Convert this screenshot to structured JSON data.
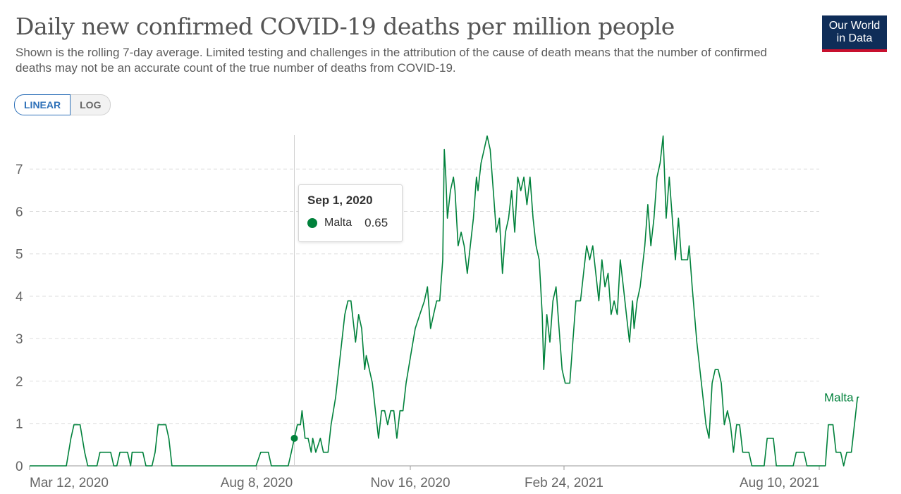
{
  "header": {
    "title": "Daily new confirmed COVID-19 deaths per million people",
    "subtitle": "Shown is the rolling 7-day average. Limited testing and challenges in the attribution of the cause of death means that the number of confirmed deaths may not be an accurate count of the true number of deaths from COVID-19.",
    "logo_line1": "Our World",
    "logo_line2": "in Data"
  },
  "controls": {
    "linear_label": "LINEAR",
    "log_label": "LOG",
    "active": "linear"
  },
  "tooltip": {
    "date": "Sep 1, 2020",
    "series": "Malta",
    "value": "0.65"
  },
  "colors": {
    "series": "#00813b",
    "grid": "#dddddd",
    "axis_text": "#666666",
    "accent": "#2d70b8",
    "logo_bg": "#0f2d58",
    "logo_bar": "#c8102e"
  },
  "chart_data": {
    "type": "line",
    "title": "Daily new confirmed COVID-19 deaths per million people",
    "ylim": [
      0,
      7.8
    ],
    "y_ticks": [
      0,
      1,
      2,
      3,
      4,
      5,
      6,
      7
    ],
    "x_tick_labels": [
      "Mar 12, 2020",
      "Aug 8, 2020",
      "Nov 16, 2020",
      "Feb 24, 2021",
      "Aug 10, 2021"
    ],
    "x_range": [
      "2020-03-12",
      "2021-08-10"
    ],
    "grid": true,
    "highlight": {
      "x": "2020-09-01",
      "y": 0.65
    },
    "series": [
      {
        "name": "Malta",
        "end_label": "Malta",
        "points": [
          [
            "2020-03-12",
            0
          ],
          [
            "2020-04-05",
            0
          ],
          [
            "2020-04-08",
            0.65
          ],
          [
            "2020-04-10",
            0.97
          ],
          [
            "2020-04-14",
            0.97
          ],
          [
            "2020-04-17",
            0.32
          ],
          [
            "2020-04-19",
            0
          ],
          [
            "2020-04-25",
            0
          ],
          [
            "2020-04-27",
            0.32
          ],
          [
            "2020-05-04",
            0.32
          ],
          [
            "2020-05-06",
            0
          ],
          [
            "2020-05-08",
            0
          ],
          [
            "2020-05-10",
            0.32
          ],
          [
            "2020-05-15",
            0.32
          ],
          [
            "2020-05-17",
            0
          ],
          [
            "2020-05-18",
            0.32
          ],
          [
            "2020-05-25",
            0.32
          ],
          [
            "2020-05-27",
            0
          ],
          [
            "2020-05-31",
            0
          ],
          [
            "2020-06-02",
            0.32
          ],
          [
            "2020-06-04",
            0.97
          ],
          [
            "2020-06-09",
            0.97
          ],
          [
            "2020-06-11",
            0.65
          ],
          [
            "2020-06-13",
            0
          ],
          [
            "2020-08-07",
            0
          ],
          [
            "2020-08-10",
            0.32
          ],
          [
            "2020-08-15",
            0.32
          ],
          [
            "2020-08-17",
            0
          ],
          [
            "2020-08-28",
            0
          ],
          [
            "2020-08-30",
            0.32
          ],
          [
            "2020-09-01",
            0.65
          ],
          [
            "2020-09-03",
            0.97
          ],
          [
            "2020-09-05",
            0.97
          ],
          [
            "2020-09-06",
            1.3
          ],
          [
            "2020-09-08",
            0.65
          ],
          [
            "2020-09-10",
            0.65
          ],
          [
            "2020-09-12",
            0.32
          ],
          [
            "2020-09-13",
            0.65
          ],
          [
            "2020-09-15",
            0.32
          ],
          [
            "2020-09-18",
            0.65
          ],
          [
            "2020-09-20",
            0.32
          ],
          [
            "2020-09-23",
            0.32
          ],
          [
            "2020-09-25",
            0.97
          ],
          [
            "2020-09-28",
            1.62
          ],
          [
            "2020-10-01",
            2.6
          ],
          [
            "2020-10-04",
            3.57
          ],
          [
            "2020-10-06",
            3.89
          ],
          [
            "2020-10-08",
            3.89
          ],
          [
            "2020-10-10",
            3.24
          ],
          [
            "2020-10-11",
            2.92
          ],
          [
            "2020-10-13",
            3.57
          ],
          [
            "2020-10-15",
            3.24
          ],
          [
            "2020-10-17",
            2.27
          ],
          [
            "2020-10-18",
            2.6
          ],
          [
            "2020-10-20",
            2.27
          ],
          [
            "2020-10-22",
            1.95
          ],
          [
            "2020-10-24",
            1.3
          ],
          [
            "2020-10-26",
            0.65
          ],
          [
            "2020-10-28",
            1.3
          ],
          [
            "2020-10-30",
            1.3
          ],
          [
            "2020-11-01",
            0.97
          ],
          [
            "2020-11-03",
            1.3
          ],
          [
            "2020-11-05",
            1.3
          ],
          [
            "2020-11-07",
            0.65
          ],
          [
            "2020-11-09",
            1.3
          ],
          [
            "2020-11-11",
            1.3
          ],
          [
            "2020-11-13",
            1.95
          ],
          [
            "2020-11-16",
            2.6
          ],
          [
            "2020-11-19",
            3.24
          ],
          [
            "2020-11-22",
            3.57
          ],
          [
            "2020-11-25",
            3.89
          ],
          [
            "2020-11-27",
            4.22
          ],
          [
            "2020-11-29",
            3.24
          ],
          [
            "2020-12-01",
            3.57
          ],
          [
            "2020-12-03",
            3.89
          ],
          [
            "2020-12-05",
            3.89
          ],
          [
            "2020-12-07",
            4.86
          ],
          [
            "2020-12-08",
            7.46
          ],
          [
            "2020-12-09",
            6.81
          ],
          [
            "2020-12-10",
            5.84
          ],
          [
            "2020-12-12",
            6.49
          ],
          [
            "2020-12-14",
            6.81
          ],
          [
            "2020-12-15",
            6.49
          ],
          [
            "2020-12-17",
            5.19
          ],
          [
            "2020-12-19",
            5.51
          ],
          [
            "2020-12-21",
            5.19
          ],
          [
            "2020-12-23",
            4.54
          ],
          [
            "2020-12-25",
            5.19
          ],
          [
            "2020-12-27",
            5.84
          ],
          [
            "2020-12-29",
            6.81
          ],
          [
            "2020-12-30",
            6.49
          ],
          [
            "2021-01-01",
            7.14
          ],
          [
            "2021-01-03",
            7.46
          ],
          [
            "2021-01-05",
            7.78
          ],
          [
            "2021-01-07",
            7.46
          ],
          [
            "2021-01-09",
            6.49
          ],
          [
            "2021-01-11",
            5.51
          ],
          [
            "2021-01-13",
            5.84
          ],
          [
            "2021-01-15",
            4.54
          ],
          [
            "2021-01-17",
            5.51
          ],
          [
            "2021-01-19",
            5.84
          ],
          [
            "2021-01-21",
            6.49
          ],
          [
            "2021-01-23",
            5.51
          ],
          [
            "2021-01-25",
            6.81
          ],
          [
            "2021-01-27",
            6.49
          ],
          [
            "2021-01-29",
            6.81
          ],
          [
            "2021-01-31",
            6.16
          ],
          [
            "2021-02-02",
            6.81
          ],
          [
            "2021-02-04",
            5.84
          ],
          [
            "2021-02-06",
            5.19
          ],
          [
            "2021-02-08",
            4.86
          ],
          [
            "2021-02-10",
            3.57
          ],
          [
            "2021-02-11",
            2.27
          ],
          [
            "2021-02-13",
            3.57
          ],
          [
            "2021-02-15",
            2.92
          ],
          [
            "2021-02-17",
            3.89
          ],
          [
            "2021-02-19",
            4.22
          ],
          [
            "2021-02-21",
            3.24
          ],
          [
            "2021-02-23",
            2.27
          ],
          [
            "2021-02-25",
            1.95
          ],
          [
            "2021-02-28",
            1.95
          ],
          [
            "2021-03-02",
            2.92
          ],
          [
            "2021-03-04",
            3.89
          ],
          [
            "2021-03-07",
            3.89
          ],
          [
            "2021-03-09",
            4.54
          ],
          [
            "2021-03-11",
            5.19
          ],
          [
            "2021-03-13",
            4.86
          ],
          [
            "2021-03-15",
            5.19
          ],
          [
            "2021-03-17",
            4.54
          ],
          [
            "2021-03-19",
            3.89
          ],
          [
            "2021-03-21",
            4.86
          ],
          [
            "2021-03-23",
            4.22
          ],
          [
            "2021-03-25",
            4.54
          ],
          [
            "2021-03-27",
            3.57
          ],
          [
            "2021-03-29",
            3.89
          ],
          [
            "2021-03-31",
            3.57
          ],
          [
            "2021-04-02",
            4.86
          ],
          [
            "2021-04-04",
            4.22
          ],
          [
            "2021-04-06",
            3.57
          ],
          [
            "2021-04-08",
            2.92
          ],
          [
            "2021-04-10",
            3.89
          ],
          [
            "2021-04-11",
            3.24
          ],
          [
            "2021-04-13",
            3.89
          ],
          [
            "2021-04-15",
            4.22
          ],
          [
            "2021-04-18",
            5.19
          ],
          [
            "2021-04-20",
            6.16
          ],
          [
            "2021-04-22",
            5.19
          ],
          [
            "2021-04-24",
            5.84
          ],
          [
            "2021-04-26",
            6.81
          ],
          [
            "2021-04-28",
            7.14
          ],
          [
            "2021-04-30",
            7.78
          ],
          [
            "2021-05-02",
            5.84
          ],
          [
            "2021-05-04",
            6.81
          ],
          [
            "2021-05-06",
            5.84
          ],
          [
            "2021-05-08",
            4.86
          ],
          [
            "2021-05-10",
            5.84
          ],
          [
            "2021-05-12",
            4.86
          ],
          [
            "2021-05-16",
            4.86
          ],
          [
            "2021-05-17",
            5.19
          ],
          [
            "2021-05-19",
            4.22
          ],
          [
            "2021-05-22",
            2.92
          ],
          [
            "2021-05-25",
            1.95
          ],
          [
            "2021-05-28",
            0.97
          ],
          [
            "2021-05-30",
            0.65
          ],
          [
            "2021-06-01",
            1.95
          ],
          [
            "2021-06-03",
            2.27
          ],
          [
            "2021-06-05",
            2.27
          ],
          [
            "2021-06-07",
            1.95
          ],
          [
            "2021-06-09",
            0.97
          ],
          [
            "2021-06-11",
            1.3
          ],
          [
            "2021-06-13",
            0.97
          ],
          [
            "2021-06-15",
            0.32
          ],
          [
            "2021-06-17",
            0.97
          ],
          [
            "2021-06-19",
            0.97
          ],
          [
            "2021-06-21",
            0.32
          ],
          [
            "2021-06-25",
            0.32
          ],
          [
            "2021-06-27",
            0
          ],
          [
            "2021-07-05",
            0
          ],
          [
            "2021-07-07",
            0.65
          ],
          [
            "2021-07-11",
            0.65
          ],
          [
            "2021-07-13",
            0
          ],
          [
            "2021-07-24",
            0
          ],
          [
            "2021-07-26",
            0.32
          ],
          [
            "2021-07-31",
            0.32
          ],
          [
            "2021-08-02",
            0
          ],
          [
            "2021-08-14",
            0
          ],
          [
            "2021-08-16",
            0.97
          ],
          [
            "2021-08-19",
            0.97
          ],
          [
            "2021-08-21",
            0.32
          ],
          [
            "2021-08-24",
            0.32
          ],
          [
            "2021-08-26",
            0
          ],
          [
            "2021-08-28",
            0.32
          ],
          [
            "2021-08-31",
            0.32
          ],
          [
            "2021-09-04",
            1.62
          ],
          [
            "2021-09-05",
            1.62
          ]
        ]
      }
    ]
  }
}
